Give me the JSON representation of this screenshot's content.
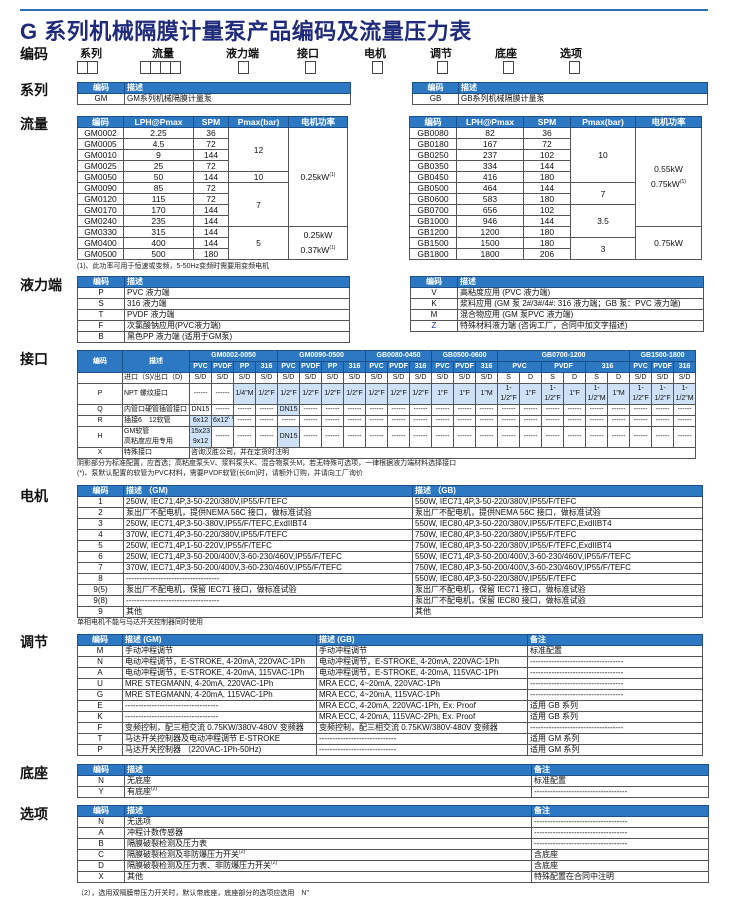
{
  "title": "G 系列机械隔膜计量泵产品编码及流量压力表",
  "code_row": {
    "label": "编码",
    "items": [
      {
        "label": "系列",
        "boxes": 2
      },
      {
        "label": "流量",
        "boxes": 4
      },
      {
        "label": "液力端",
        "boxes": 1
      },
      {
        "label": "接口",
        "boxes": 1
      },
      {
        "label": "电机",
        "boxes": 1
      },
      {
        "label": "调节",
        "boxes": 1
      },
      {
        "label": "底座",
        "boxes": 1
      },
      {
        "label": "选项",
        "boxes": 1
      }
    ]
  },
  "series": {
    "label": "系列",
    "headers": [
      "编码",
      "描述"
    ],
    "left": [
      [
        "GM",
        "GM系列机械隔膜计量泵"
      ]
    ],
    "right": [
      [
        "GB",
        "GB系列机械隔膜计量泵"
      ]
    ]
  },
  "flow": {
    "label": "流量",
    "headers": [
      "编码",
      "LPH@Pmax",
      "SPM",
      "Pmax(bar)",
      "电机功率"
    ],
    "gm": {
      "rows": [
        [
          "GM0002",
          "2.25",
          "36"
        ],
        [
          "GM0005",
          "4.5",
          "72"
        ],
        [
          "GM0010",
          "9",
          "144"
        ],
        [
          "GM0025",
          "25",
          "72"
        ],
        [
          "GM0050",
          "50",
          "144"
        ],
        [
          "GM0090",
          "85",
          "72"
        ],
        [
          "GM0120",
          "115",
          "72"
        ],
        [
          "GM0170",
          "170",
          "144"
        ],
        [
          "GM0240",
          "235",
          "144"
        ],
        [
          "GM0330",
          "315",
          "144"
        ],
        [
          "GM0400",
          "400",
          "144"
        ],
        [
          "GM0500",
          "500",
          "180"
        ]
      ],
      "pmax": [
        {
          "value": "12",
          "span": 4
        },
        {
          "value": "10",
          "span": 1
        },
        {
          "value": "7",
          "span": 4
        },
        {
          "value": "5",
          "span": 3
        }
      ],
      "power": [
        {
          "lines": [
            "0.25kW"
          ],
          "sup": "(1)",
          "span": 9
        },
        {
          "lines": [
            "0.25kW",
            "0.37kW"
          ],
          "sup": "(1)",
          "span": 3
        }
      ]
    },
    "gb": {
      "rows": [
        [
          "GB0080",
          "82",
          "36"
        ],
        [
          "GB0180",
          "167",
          "72"
        ],
        [
          "GB0250",
          "237",
          "102"
        ],
        [
          "GB0350",
          "334",
          "144"
        ],
        [
          "GB0450",
          "416",
          "180"
        ],
        [
          "GB0500",
          "464",
          "144"
        ],
        [
          "GB0600",
          "583",
          "180"
        ],
        [
          "GB0700",
          "656",
          "102"
        ],
        [
          "GB1000",
          "946",
          "144"
        ],
        [
          "GB1200",
          "1200",
          "180"
        ],
        [
          "GB1500",
          "1500",
          "180"
        ],
        [
          "GB1800",
          "1800",
          "206"
        ]
      ],
      "pmax": [
        {
          "value": "10",
          "span": 5
        },
        {
          "value": "7",
          "span": 2
        },
        {
          "value": "3.5",
          "span": 3
        },
        {
          "value": "3",
          "span": 2
        }
      ],
      "power": [
        {
          "lines": [
            "0.55kW",
            "0.75kW"
          ],
          "sup": "(1)",
          "span": 9
        },
        {
          "lines": [
            "0.75kW"
          ],
          "sup": "",
          "span": 3
        }
      ]
    },
    "footnote": "(1)、此功率可用于恒速或变频，5-50Hz变频时需要用变频电机"
  },
  "wet_end": {
    "label": "液力端",
    "headers": [
      "编码",
      "描述"
    ],
    "left": [
      [
        "P",
        "PVC 液力端"
      ],
      [
        "S",
        "316 液力端"
      ],
      [
        "T",
        "PVDF 液力端"
      ],
      [
        "F",
        "次氯酸钠应用(PVC液力端)"
      ],
      [
        "B",
        "黑色PP 液力端 (适用于GM泵)"
      ]
    ],
    "right": [
      [
        "V",
        "高粘度应用 (PVC 液力端)"
      ],
      [
        "K",
        "浆料应用 (GM 泵 2#/3#/4#: 316 液力端；GB 泵：PVC 液力端)"
      ],
      [
        "M",
        "混合物应用 (GM 泵PVC 液力端)"
      ],
      [
        "Z",
        "特殊材料液力端 (咨询工厂，合同中加文字描述)"
      ]
    ]
  },
  "connection": {
    "label": "接口",
    "headers": {
      "code": "编码",
      "desc": "描述"
    },
    "groups": [
      {
        "name": "GM0002-0050",
        "subs": [
          {
            "name": "PVC",
            "span": 1
          },
          {
            "name": "PVDF",
            "span": 1
          },
          {
            "name": "PP",
            "span": 1
          },
          {
            "name": "316",
            "span": 1
          }
        ]
      },
      {
        "name": "GM0090-0500",
        "subs": [
          {
            "name": "PVC",
            "span": 1
          },
          {
            "name": "PVDF",
            "span": 1
          },
          {
            "name": "PP",
            "span": 1
          },
          {
            "name": "316",
            "span": 1
          }
        ]
      },
      {
        "name": "GB0080-0450",
        "subs": [
          {
            "name": "PVC",
            "span": 1
          },
          {
            "name": "PVDF",
            "span": 1
          },
          {
            "name": "316",
            "span": 1
          }
        ]
      },
      {
        "name": "GB0500-0600",
        "subs": [
          {
            "name": "PVC",
            "span": 1
          },
          {
            "name": "PVDF",
            "span": 1
          },
          {
            "name": "316",
            "span": 1
          }
        ]
      },
      {
        "name": "GB0700-1200",
        "subs": [
          {
            "name": "PVC",
            "span": 2
          },
          {
            "name": "PVDF",
            "span": 2
          },
          {
            "name": "316",
            "span": 2
          }
        ]
      },
      {
        "name": "GB1500-1800",
        "subs": [
          {
            "name": "PVC",
            "span": 1
          },
          {
            "name": "PVDF",
            "span": 1
          },
          {
            "name": "316",
            "span": 1
          }
        ]
      }
    ],
    "rows": [
      {
        "code": "",
        "desc": "进口（S)/出口（D)",
        "cells": [
          {
            "v": "S/D"
          },
          {
            "v": "S/D"
          },
          {
            "v": "S/D"
          },
          {
            "v": "S/D"
          },
          {
            "v": "S/D"
          },
          {
            "v": "S/D"
          },
          {
            "v": "S/D"
          },
          {
            "v": "S/D"
          },
          {
            "v": "S/D"
          },
          {
            "v": "S/D"
          },
          {
            "v": "S/D"
          },
          {
            "v": "S/D"
          },
          {
            "v": "S/D"
          },
          {
            "v": "S/D"
          },
          {
            "v": "S"
          },
          {
            "v": "D"
          },
          {
            "v": "S"
          },
          {
            "v": "D"
          },
          {
            "v": "S"
          },
          {
            "v": "D"
          },
          {
            "v": "S/D"
          },
          {
            "v": "S/D"
          },
          {
            "v": "S/D"
          }
        ]
      },
      {
        "code": "P",
        "desc": "NPT 螺纹接口",
        "cells": [
          {
            "v": "------"
          },
          {
            "v": "------"
          },
          {
            "v": "1/4\"M",
            "std": true
          },
          {
            "v": "1/2\"F",
            "std": true
          },
          {
            "v": "1/2\"F",
            "std": true
          },
          {
            "v": "1/2\"F",
            "std": true
          },
          {
            "v": "1/2\"F",
            "std": true
          },
          {
            "v": "1/2\"F",
            "std": true
          },
          {
            "v": "1/2\"F",
            "std": true
          },
          {
            "v": "1/2\"F",
            "std": true
          },
          {
            "v": "1/2\"F",
            "std": true
          },
          {
            "v": "1\"F",
            "std": true
          },
          {
            "v": "1\"F",
            "std": true
          },
          {
            "v": "1\"M",
            "std": true
          },
          {
            "v": "1-1/2\"F",
            "std": true
          },
          {
            "v": "1\"F",
            "std": true
          },
          {
            "v": "1-1/2\"F",
            "std": true
          },
          {
            "v": "1\"F",
            "std": true
          },
          {
            "v": "1-1/2\"M",
            "std": true
          },
          {
            "v": "1\"M",
            "std": true
          },
          {
            "v": "1-1/2\"F",
            "std": true
          },
          {
            "v": "1-1/2\"F",
            "std": true
          },
          {
            "v": "1-1/2\"M",
            "std": true
          }
        ]
      },
      {
        "code": "Q",
        "desc": "内管口硬管插管接口",
        "cells": [
          {
            "v": "DN15"
          },
          {
            "v": "------"
          },
          {
            "v": "------"
          },
          {
            "v": "------"
          },
          {
            "v": "DN15",
            "std": true
          },
          {
            "v": "------"
          },
          {
            "v": "------"
          },
          {
            "v": "------"
          },
          {
            "v": "------"
          },
          {
            "v": "------"
          },
          {
            "v": "------"
          },
          {
            "v": "------"
          },
          {
            "v": "------"
          },
          {
            "v": "------"
          },
          {
            "v": "------"
          },
          {
            "v": "------"
          },
          {
            "v": "------"
          },
          {
            "v": "------"
          },
          {
            "v": "------"
          },
          {
            "v": "------"
          },
          {
            "v": "------"
          },
          {
            "v": "------"
          },
          {
            "v": "------"
          }
        ]
      },
      {
        "code": "R",
        "desc": "插接6　12软管",
        "cells": [
          {
            "v": "6x12",
            "std": true
          },
          {
            "v": "6x12",
            "sup": "(*)",
            "std": true
          },
          {
            "v": "------"
          },
          {
            "v": "------"
          },
          {
            "v": "------"
          },
          {
            "v": "------"
          },
          {
            "v": "------"
          },
          {
            "v": "------"
          },
          {
            "v": "------"
          },
          {
            "v": "------"
          },
          {
            "v": "------"
          },
          {
            "v": "------"
          },
          {
            "v": "------"
          },
          {
            "v": "------"
          },
          {
            "v": "------"
          },
          {
            "v": "------"
          },
          {
            "v": "------"
          },
          {
            "v": "------"
          },
          {
            "v": "------"
          },
          {
            "v": "------"
          },
          {
            "v": "------"
          },
          {
            "v": "------"
          },
          {
            "v": "------"
          }
        ]
      },
      {
        "code": "H",
        "desc": "GM软管\n高粘度应用专用",
        "cells": [
          {
            "v": "15x23\n9x12",
            "std": true
          },
          {
            "v": "------"
          },
          {
            "v": "------"
          },
          {
            "v": "------"
          },
          {
            "v": "DN15",
            "std": true
          },
          {
            "v": "------"
          },
          {
            "v": "------"
          },
          {
            "v": "------"
          },
          {
            "v": "------"
          },
          {
            "v": "------"
          },
          {
            "v": "------"
          },
          {
            "v": "------"
          },
          {
            "v": "------"
          },
          {
            "v": "------"
          },
          {
            "v": "------"
          },
          {
            "v": "------"
          },
          {
            "v": "------"
          },
          {
            "v": "------"
          },
          {
            "v": "------"
          },
          {
            "v": "------"
          },
          {
            "v": "------"
          },
          {
            "v": "------"
          },
          {
            "v": "------"
          }
        ]
      }
    ],
    "x_row": {
      "code": "X",
      "desc": "特殊接口",
      "text": "咨询汉胜公司，并在定货时注明"
    },
    "notes": [
      "阴影部分为标准配置，应首选；高粘度泵头V、浆料泵头K、混合物泵头M，若无特殊可选项，一律根据液力端材料选择接口",
      "(*)、泵默认配置的软管为PVC材料，需要PVDF软管(长6m)时，请额外订购，并请向工厂询价"
    ]
  },
  "motor": {
    "label": "电机",
    "headers": [
      "编码",
      "描述 （GM)",
      "描述 （GB)"
    ],
    "rows": [
      [
        "1",
        "250W, IEC71,4P,3-50-220/380V,IP55/F/TEFC",
        "550W, IEC71,4P,3-50-220/380V,IP55/F/TEFC"
      ],
      [
        "2",
        "泵出厂不配电机，提供NEMA 56C 接口，做标准试验",
        "泵出厂不配电机，提供NEMA 56C 接口，做标准试验"
      ],
      [
        "3",
        "250W, IEC71,4P,3-50-380V,IP55/F/TEFC,ExdIIBT4",
        "550W, IEC80,4P,3-50-220/380V,IP55/F/TEFC,ExdIIBT4"
      ],
      [
        "4",
        "370W, IEC71,4P,3-50-220/380V,IP55/F/TEFC",
        "750W, IEC80,4P,3-50-220/380V,IP55/F/TEFC"
      ],
      [
        "5",
        "250W, IEC71,4P,1-50-220V,IP55/F/TEFC",
        "750W, IEC80,4P,3-50-220/380V,IP55/F/TEFC,ExdIIBT4"
      ],
      [
        "6",
        "250W, IEC71,4P,3-50-200/400V,3-60-230/460V,IP55/F/TEFC",
        "550W, IEC71,4P,3-50-200/400V,3-60-230/460V,IP55/F/TEFC"
      ],
      [
        "7",
        "370W, IEC71,4P,3-50-200/400V,3-60-230/460V,IP55/F/TEFC",
        "750W, IEC80,4P,3-50-200/400V,3-60-230/460V,IP55/F/TEFC"
      ],
      [
        "8",
        "-----------------------------------",
        "550W, IEC80,4P,3-50-220/380V,IP55/F/TEFC"
      ],
      [
        "9(5)",
        "泵出厂不配电机，保留 IEC71 接口，做标准试验",
        "泵出厂不配电机，保留 IEC71 接口，做标准试验"
      ],
      [
        "9(8)",
        "-----------------------------------",
        "泵出厂不配电机，保留 IEC80 接口，做标准试验"
      ],
      [
        "9",
        "其他",
        "其他"
      ]
    ],
    "note": "单相电机不能与马达开关控制器同时使用"
  },
  "adjust": {
    "label": "调节",
    "headers": [
      "编码",
      "描述 (GM)",
      "描述 (GB)",
      "备注"
    ],
    "rows": [
      [
        "M",
        "手动冲程调节",
        "手动冲程调节",
        "标准配置"
      ],
      [
        "N",
        "电动冲程调节，E-STROKE, 4-20mA, 220VAC-1Ph",
        "电动冲程调节，E-STROKE, 4-20mA, 220VAC-1Ph",
        "-----------------------------------"
      ],
      [
        "A",
        "电动冲程调节，E-STROKE, 4-20mA, 115VAC-1Ph",
        "电动冲程调节，E-STROKE, 4-20mA, 115VAC-1Ph",
        "-----------------------------------"
      ],
      [
        "U",
        "MRE STEGMANN, 4-20mA, 220VAC-1Ph",
        "MRA ECC, 4~20mA, 220VAC-1Ph",
        "-----------------------------------"
      ],
      [
        "G",
        "MRE STEGMANN, 4-20mA, 115VAC-1Ph",
        "MRA ECC, 4~20mA, 115VAC-1Ph",
        "-----------------------------------"
      ],
      [
        "E",
        "-----------------------------------",
        "MRA ECC, 4-20mA, 220VAC-1Ph, Ex. Proof",
        "适用 GB 系列"
      ],
      [
        "K",
        "-----------------------------------",
        "MRA ECC, 4-20mA, 115VAC-2Ph, Ex. Proof",
        "适用 GB 系列"
      ],
      [
        "F",
        "变频控制，配三相交流 0.75KW/380V-480V 变频器",
        "变频控制，配三相交流 0.75KW/380V-480V 变频器",
        "-----------------------------------"
      ],
      [
        "T",
        "马达开关控制器及电动冲程调节 E-STROKE",
        "-----------------------------",
        "适用 GM 系列"
      ],
      [
        "P",
        "马达开关控制器 （220VAC-1Ph-50Hz)",
        "-----------------------------",
        "适用 GM 系列"
      ]
    ]
  },
  "base": {
    "label": "底座",
    "headers": [
      "编码",
      "描述",
      "备注"
    ],
    "rows": [
      [
        "N",
        "无底座",
        "标准配置"
      ],
      [
        "Y",
        {
          "t": "有底座",
          "sup": "(2)"
        },
        "-----------------------------------"
      ]
    ]
  },
  "options": {
    "label": "选项",
    "headers": [
      "编码",
      "描述",
      "备注"
    ],
    "rows": [
      [
        "N",
        "无选项",
        "-----------------------------------"
      ],
      [
        "A",
        "冲程计数传感器",
        "-----------------------------------"
      ],
      [
        "B",
        "隔膜破裂检测及压力表",
        "-----------------------------------"
      ],
      [
        "C",
        {
          "t": "隔膜破裂检测及非防爆压力开关",
          "sup": "(2)"
        },
        "含底座"
      ],
      [
        "D",
        {
          "t": "隔膜破裂检测及压力表、非防爆压力开关",
          "sup": "(2)"
        },
        "含底座"
      ],
      [
        "X",
        "其他",
        "特殊配置在合同中注明"
      ]
    ],
    "footnote": "（2），选用双隔膜带压力开关时，默认带底座，底座部分的选项应选用　N\""
  },
  "colors": {
    "header_bg": "#2c78c3",
    "title": "#1f2a7a",
    "standard_shade": "#cfe2f5",
    "rule": "#2d6db3"
  }
}
